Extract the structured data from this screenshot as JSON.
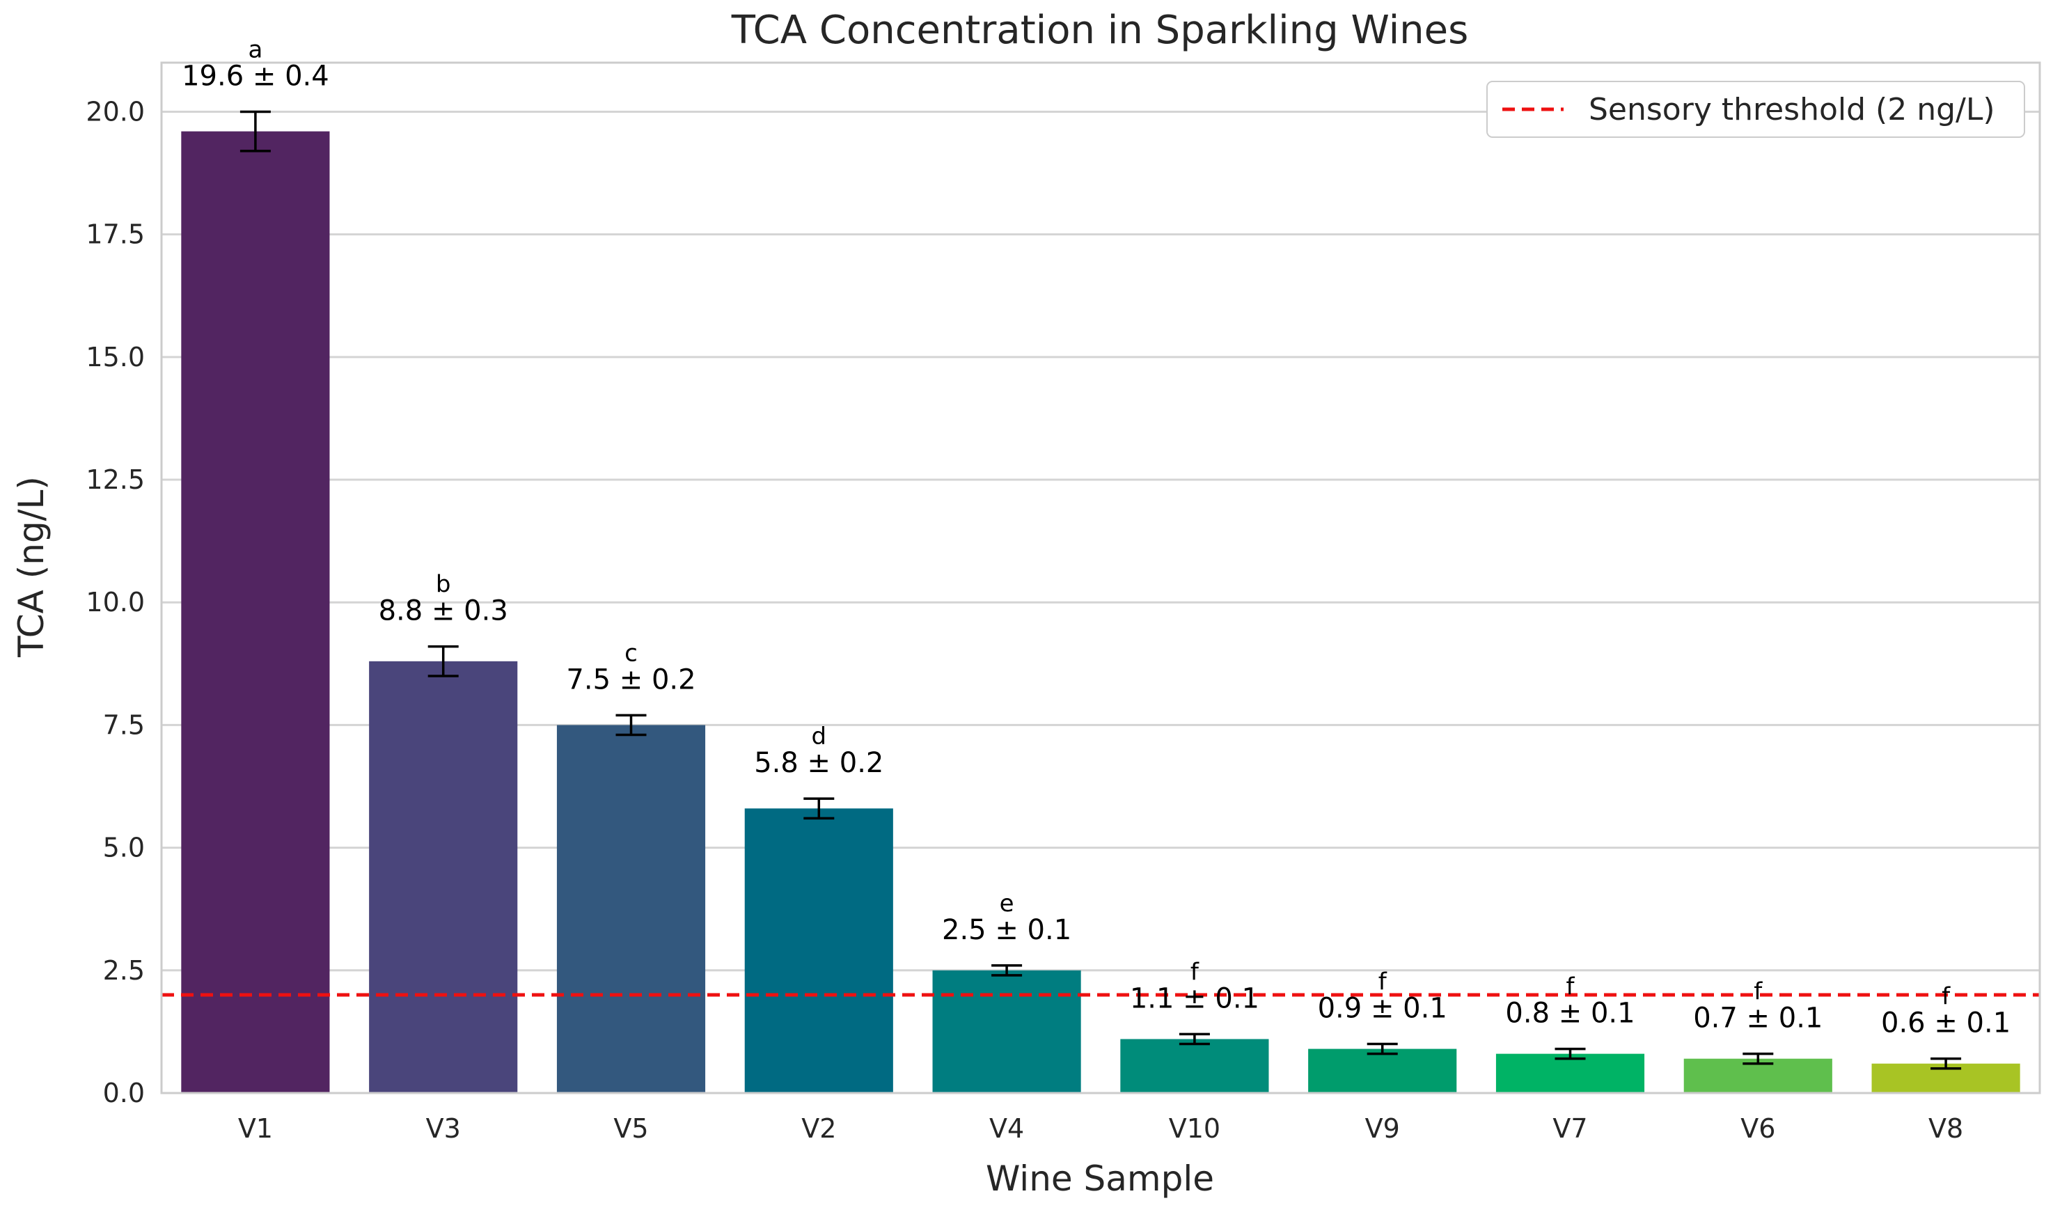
{
  "chart_data": {
    "type": "bar",
    "title": "TCA Concentration in Sparkling Wines",
    "xlabel": "Wine Sample",
    "ylabel": "TCA (ng/L)",
    "ylim": [
      0,
      21.0
    ],
    "yticks": [
      0.0,
      2.5,
      5.0,
      7.5,
      10.0,
      12.5,
      15.0,
      17.5,
      20.0
    ],
    "ytick_labels": [
      "0.0",
      "2.5",
      "5.0",
      "7.5",
      "10.0",
      "12.5",
      "15.0",
      "17.5",
      "20.0"
    ],
    "grid": true,
    "categories": [
      "V1",
      "V3",
      "V5",
      "V2",
      "V4",
      "V10",
      "V9",
      "V7",
      "V6",
      "V8"
    ],
    "values": [
      19.6,
      8.8,
      7.5,
      5.8,
      2.5,
      1.1,
      0.9,
      0.8,
      0.7,
      0.6
    ],
    "errors": [
      0.4,
      0.3,
      0.2,
      0.2,
      0.1,
      0.1,
      0.1,
      0.1,
      0.1,
      0.1
    ],
    "value_labels": [
      "19.6 ± 0.4",
      "8.8 ± 0.3",
      "7.5 ± 0.2",
      "5.8 ± 0.2",
      "2.5 ± 0.1",
      "1.1 ± 0.1",
      "0.9 ± 0.1",
      "0.8 ± 0.1",
      "0.7 ± 0.1",
      "0.6 ± 0.1"
    ],
    "significance_letters": [
      "a",
      "b",
      "c",
      "d",
      "e",
      "f",
      "f",
      "f",
      "f",
      "f"
    ],
    "colors": [
      "#522561",
      "#4a457b",
      "#33587e",
      "#006a82",
      "#007d80",
      "#008c7a",
      "#009c6c",
      "#00b365",
      "#5fbf4d",
      "#a8c424"
    ],
    "threshold": {
      "value": 2.0,
      "label": "Sensory threshold (2 ng/L)",
      "color": "#ee1111"
    },
    "legend_position": "top-right"
  }
}
